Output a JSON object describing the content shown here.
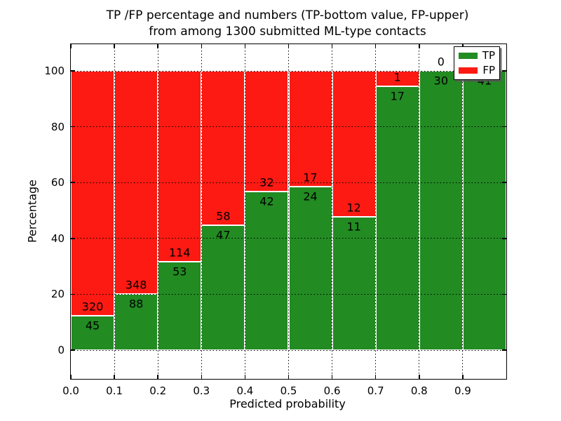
{
  "title": {
    "line1": "TP /FP percentage and numbers (TP-bottom value, FP-upper)",
    "line2": "from among 1300 submitted ML-type contacts"
  },
  "axes": {
    "xlabel": "Predicted probability",
    "ylabel": "Percentage",
    "xtick_labels": [
      "0.0",
      "0.1",
      "0.2",
      "0.3",
      "0.4",
      "0.5",
      "0.6",
      "0.7",
      "0.8",
      "0.9"
    ],
    "xtick_values": [
      0.0,
      0.1,
      0.2,
      0.3,
      0.4,
      0.5,
      0.6,
      0.7,
      0.8,
      0.9
    ],
    "ytick_labels": [
      "0",
      "20",
      "40",
      "60",
      "80",
      "100"
    ],
    "ytick_values": [
      0,
      20,
      40,
      60,
      80,
      100
    ],
    "xlim": [
      0.0,
      1.0
    ],
    "ylim_percent": [
      0,
      100
    ],
    "grid": true,
    "grid_style": "dotted"
  },
  "legend": {
    "position": "upper right",
    "items": [
      {
        "label": "TP",
        "color": "#228b22"
      },
      {
        "label": "FP",
        "color": "#fc1a13"
      }
    ]
  },
  "chart_data": {
    "type": "bar",
    "stacked": true,
    "normalized_to_percent": true,
    "total_contacts": 1300,
    "bin_edges": [
      0.0,
      0.1,
      0.2,
      0.3,
      0.4,
      0.5,
      0.6,
      0.7,
      0.8,
      0.9,
      1.0
    ],
    "categories": [
      "0.0-0.1",
      "0.1-0.2",
      "0.2-0.3",
      "0.3-0.4",
      "0.4-0.5",
      "0.5-0.6",
      "0.6-0.7",
      "0.7-0.8",
      "0.8-0.9",
      "0.9-1.0"
    ],
    "series": [
      {
        "name": "TP",
        "color": "#228b22",
        "counts": [
          45,
          88,
          53,
          47,
          42,
          24,
          11,
          17,
          30,
          41
        ],
        "percent": [
          12.3,
          20.2,
          31.7,
          44.8,
          56.8,
          58.5,
          47.8,
          94.4,
          100.0,
          100.0
        ]
      },
      {
        "name": "FP",
        "color": "#fc1a13",
        "counts": [
          320,
          348,
          114,
          58,
          32,
          17,
          12,
          1,
          0,
          0
        ],
        "percent": [
          87.7,
          79.8,
          68.3,
          55.2,
          43.2,
          41.5,
          52.2,
          5.6,
          0.0,
          0.0
        ]
      }
    ]
  }
}
